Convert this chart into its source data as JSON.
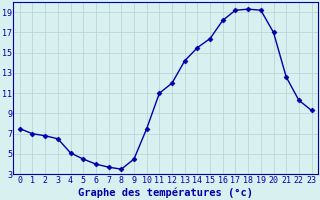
{
  "hours": [
    0,
    1,
    2,
    3,
    4,
    5,
    6,
    7,
    8,
    9,
    10,
    11,
    12,
    13,
    14,
    15,
    16,
    17,
    18,
    19,
    20,
    21,
    22,
    23
  ],
  "temps": [
    7.5,
    7.0,
    6.8,
    6.5,
    5.1,
    4.5,
    4.0,
    3.7,
    3.5,
    4.5,
    7.5,
    11.0,
    12.0,
    14.2,
    15.5,
    16.4,
    18.2,
    19.2,
    19.3,
    19.2,
    17.0,
    12.6,
    10.3,
    9.3
  ],
  "line_color": "#0000aa",
  "bg_color": "#d8f0f0",
  "grid_color": "#b8d8d8",
  "text_color": "#0000aa",
  "xlabel": "Graphe des températures (°c)",
  "ylim": [
    3,
    20
  ],
  "yticks": [
    3,
    5,
    7,
    9,
    11,
    13,
    15,
    17,
    19
  ],
  "tick_fontsize": 6,
  "label_fontsize": 7.5
}
